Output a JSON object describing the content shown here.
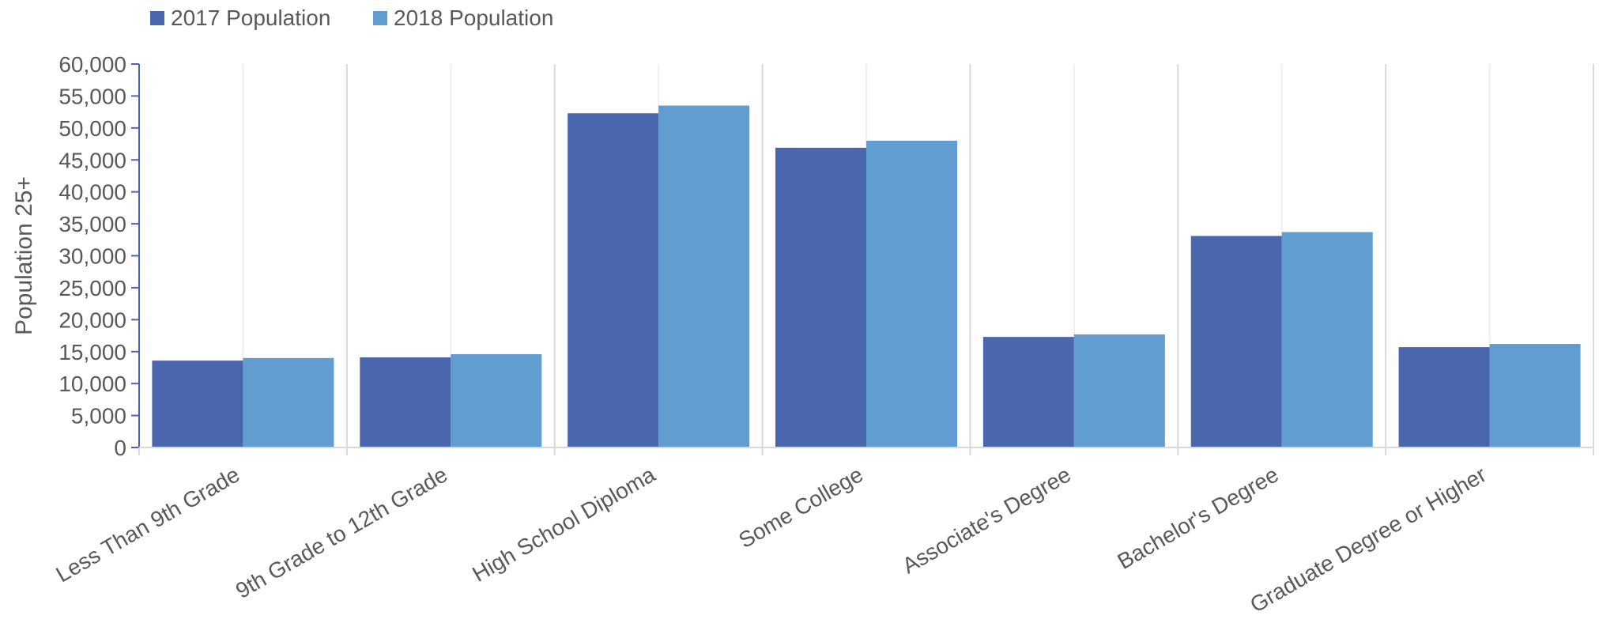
{
  "chart_data": {
    "type": "bar",
    "title": "",
    "xlabel": "",
    "ylabel": "Population 25+",
    "ylim": [
      0,
      60000
    ],
    "yticks": [
      0,
      5000,
      10000,
      15000,
      20000,
      25000,
      30000,
      35000,
      40000,
      45000,
      50000,
      55000,
      60000
    ],
    "ytick_labels": [
      "0",
      "5,000",
      "10,000",
      "15,000",
      "20,000",
      "25,000",
      "30,000",
      "35,000",
      "40,000",
      "45,000",
      "50,000",
      "55,000",
      "60,000"
    ],
    "categories": [
      "Less Than 9th Grade",
      "9th Grade to 12th Grade",
      "High School Diploma",
      "Some College",
      "Associate's Degree",
      "Bachelor's Degree",
      "Graduate Degree or Higher"
    ],
    "series": [
      {
        "name": "2017 Population",
        "color": "#4a67ae",
        "values": [
          13600,
          14100,
          52300,
          46900,
          17300,
          33100,
          15700
        ]
      },
      {
        "name": "2018 Population",
        "color": "#619dd1",
        "values": [
          14000,
          14600,
          53500,
          48000,
          17700,
          33700,
          16200
        ]
      }
    ],
    "grid": true,
    "legend_position": "top-left"
  }
}
